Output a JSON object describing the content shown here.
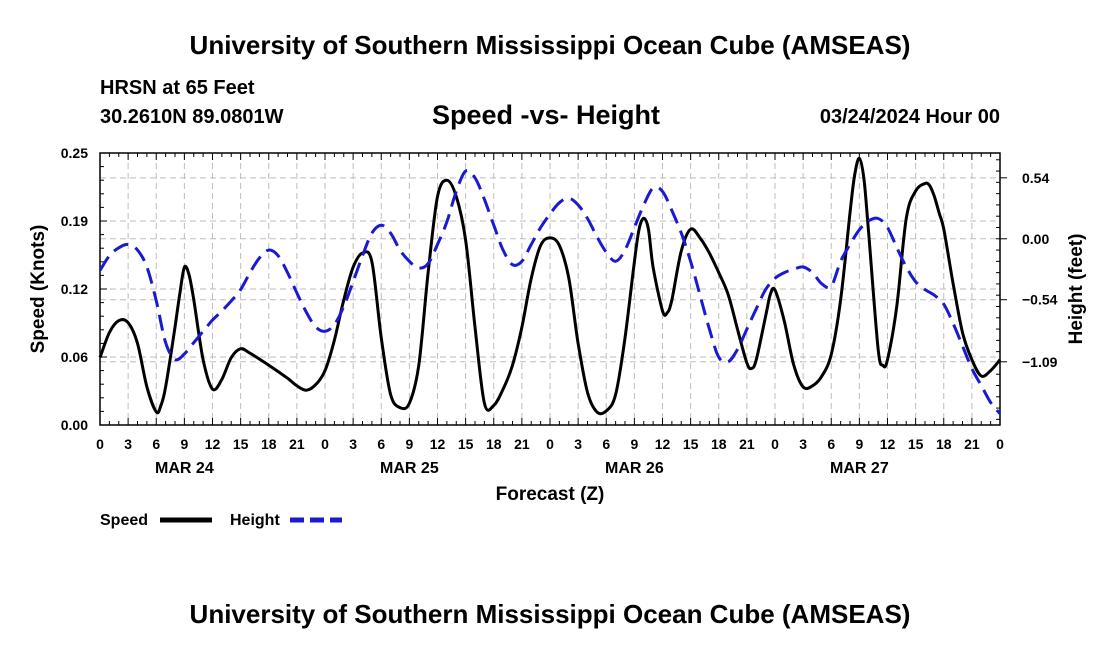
{
  "header": {
    "title": "University of Southern Mississippi Ocean Cube (AMSEAS)",
    "station": "HRSN at 65 Feet",
    "coords": "30.2610N  89.0801W",
    "chart_title": "Speed -vs- Height",
    "date": "03/24/2024 Hour 00"
  },
  "footer": {
    "title": "University of Southern Mississippi Ocean Cube (AMSEAS)"
  },
  "colors": {
    "speed": "#000000",
    "height": "#1a1ad0",
    "grid": "#bdbdbd"
  },
  "chart_data": {
    "type": "line",
    "title": "Speed -vs- Height",
    "xlabel": "Forecast (Z)",
    "ylabel_left": "Speed (Knots)",
    "ylabel_right": "Height (feet)",
    "x_range_hours": [
      0,
      96
    ],
    "x_tick_labels": [
      "0",
      "3",
      "6",
      "9",
      "12",
      "15",
      "18",
      "21",
      "0",
      "3",
      "6",
      "9",
      "12",
      "15",
      "18",
      "21",
      "0",
      "3",
      "6",
      "9",
      "12",
      "15",
      "18",
      "21",
      "0",
      "3",
      "6",
      "9",
      "12",
      "15",
      "18",
      "21",
      "0"
    ],
    "day_labels": [
      {
        "label": "MAR 24",
        "hour": 9
      },
      {
        "label": "MAR 25",
        "hour": 33
      },
      {
        "label": "MAR 26",
        "hour": 57
      },
      {
        "label": "MAR 27",
        "hour": 81
      }
    ],
    "y_left": {
      "range": [
        0,
        0.25
      ],
      "ticks": [
        "0.00",
        "0.06",
        "0.12",
        "0.19",
        "0.25"
      ],
      "tick_values": [
        0,
        0.0625,
        0.125,
        0.1875,
        0.25
      ]
    },
    "y_right": {
      "range": [
        -1.65,
        0.76
      ],
      "ticks": [
        "0.54",
        "0.00",
        "−0.54",
        "−1.09"
      ],
      "tick_values": [
        0.54,
        0,
        -0.54,
        -1.09
      ]
    },
    "legend": [
      {
        "label": "Speed",
        "style": "solid"
      },
      {
        "label": "Height",
        "style": "dashed"
      }
    ],
    "series": [
      {
        "name": "Speed",
        "axis": "left",
        "style": "solid",
        "points": [
          [
            0,
            0.062
          ],
          [
            1,
            0.085
          ],
          [
            2,
            0.096
          ],
          [
            3,
            0.094
          ],
          [
            4,
            0.075
          ],
          [
            5,
            0.035
          ],
          [
            6,
            0.012
          ],
          [
            6.5,
            0.018
          ],
          [
            7,
            0.035
          ],
          [
            8,
            0.09
          ],
          [
            8.5,
            0.12
          ],
          [
            9,
            0.145
          ],
          [
            9.5,
            0.138
          ],
          [
            10,
            0.115
          ],
          [
            11,
            0.06
          ],
          [
            12,
            0.033
          ],
          [
            13,
            0.042
          ],
          [
            14,
            0.062
          ],
          [
            15,
            0.07
          ],
          [
            16,
            0.066
          ],
          [
            18,
            0.055
          ],
          [
            20,
            0.043
          ],
          [
            21,
            0.036
          ],
          [
            22,
            0.032
          ],
          [
            23,
            0.037
          ],
          [
            24,
            0.05
          ],
          [
            25,
            0.078
          ],
          [
            26,
            0.115
          ],
          [
            27,
            0.145
          ],
          [
            28,
            0.158
          ],
          [
            29,
            0.15
          ],
          [
            30,
            0.08
          ],
          [
            31,
            0.028
          ],
          [
            32,
            0.016
          ],
          [
            33,
            0.02
          ],
          [
            34,
            0.055
          ],
          [
            35,
            0.14
          ],
          [
            36,
            0.21
          ],
          [
            37,
            0.225
          ],
          [
            38,
            0.21
          ],
          [
            39,
            0.17
          ],
          [
            40,
            0.09
          ],
          [
            41,
            0.02
          ],
          [
            42,
            0.018
          ],
          [
            43,
            0.033
          ],
          [
            44,
            0.055
          ],
          [
            45,
            0.09
          ],
          [
            46,
            0.135
          ],
          [
            47,
            0.165
          ],
          [
            48,
            0.172
          ],
          [
            49,
            0.165
          ],
          [
            50,
            0.135
          ],
          [
            51,
            0.075
          ],
          [
            52,
            0.03
          ],
          [
            53,
            0.012
          ],
          [
            54,
            0.013
          ],
          [
            55,
            0.028
          ],
          [
            56,
            0.08
          ],
          [
            57,
            0.15
          ],
          [
            57.5,
            0.18
          ],
          [
            58,
            0.19
          ],
          [
            58.5,
            0.18
          ],
          [
            59,
            0.145
          ],
          [
            60,
            0.105
          ],
          [
            60.5,
            0.103
          ],
          [
            61,
            0.115
          ],
          [
            62,
            0.16
          ],
          [
            63,
            0.18
          ],
          [
            64,
            0.172
          ],
          [
            65,
            0.158
          ],
          [
            66,
            0.14
          ],
          [
            67,
            0.12
          ],
          [
            68,
            0.088
          ],
          [
            69,
            0.057
          ],
          [
            69.5,
            0.052
          ],
          [
            70,
            0.06
          ],
          [
            71,
            0.1
          ],
          [
            71.5,
            0.12
          ],
          [
            72,
            0.124
          ],
          [
            73,
            0.095
          ],
          [
            74,
            0.055
          ],
          [
            75,
            0.035
          ],
          [
            76,
            0.036
          ],
          [
            77,
            0.045
          ],
          [
            78,
            0.065
          ],
          [
            79,
            0.115
          ],
          [
            80,
            0.195
          ],
          [
            80.5,
            0.23
          ],
          [
            81,
            0.245
          ],
          [
            81.5,
            0.225
          ],
          [
            82,
            0.175
          ],
          [
            83,
            0.07
          ],
          [
            83.5,
            0.055
          ],
          [
            84,
            0.06
          ],
          [
            85,
            0.11
          ],
          [
            86,
            0.19
          ],
          [
            87,
            0.215
          ],
          [
            88,
            0.222
          ],
          [
            88.5,
            0.22
          ],
          [
            89,
            0.21
          ],
          [
            89.5,
            0.195
          ],
          [
            90,
            0.18
          ],
          [
            91,
            0.13
          ],
          [
            92,
            0.085
          ],
          [
            93,
            0.06
          ],
          [
            94,
            0.045
          ],
          [
            95,
            0.05
          ],
          [
            96,
            0.06
          ]
        ]
      },
      {
        "name": "Height",
        "axis": "right",
        "style": "dashed",
        "points": [
          [
            0,
            -0.28
          ],
          [
            1,
            -0.15
          ],
          [
            2,
            -0.08
          ],
          [
            3,
            -0.05
          ],
          [
            4,
            -0.1
          ],
          [
            5,
            -0.25
          ],
          [
            6,
            -0.55
          ],
          [
            7,
            -0.92
          ],
          [
            8,
            -1.07
          ],
          [
            9,
            -1.02
          ],
          [
            10,
            -0.92
          ],
          [
            11,
            -0.82
          ],
          [
            12,
            -0.72
          ],
          [
            13,
            -0.64
          ],
          [
            14,
            -0.55
          ],
          [
            15,
            -0.45
          ],
          [
            16,
            -0.3
          ],
          [
            17,
            -0.17
          ],
          [
            18,
            -0.1
          ],
          [
            19,
            -0.15
          ],
          [
            20,
            -0.3
          ],
          [
            21,
            -0.48
          ],
          [
            22,
            -0.65
          ],
          [
            23,
            -0.78
          ],
          [
            24,
            -0.82
          ],
          [
            25,
            -0.76
          ],
          [
            26,
            -0.6
          ],
          [
            27,
            -0.38
          ],
          [
            28,
            -0.15
          ],
          [
            29,
            0.05
          ],
          [
            30,
            0.12
          ],
          [
            31,
            0.05
          ],
          [
            32,
            -0.1
          ],
          [
            33,
            -0.2
          ],
          [
            34,
            -0.26
          ],
          [
            35,
            -0.22
          ],
          [
            36,
            -0.05
          ],
          [
            37,
            0.15
          ],
          [
            38,
            0.42
          ],
          [
            39,
            0.6
          ],
          [
            40,
            0.54
          ],
          [
            41,
            0.35
          ],
          [
            42,
            0.12
          ],
          [
            43,
            -0.1
          ],
          [
            44,
            -0.23
          ],
          [
            45,
            -0.2
          ],
          [
            46,
            -0.05
          ],
          [
            47,
            0.1
          ],
          [
            48,
            0.22
          ],
          [
            49,
            0.32
          ],
          [
            50,
            0.36
          ],
          [
            51,
            0.3
          ],
          [
            52,
            0.18
          ],
          [
            53,
            0.02
          ],
          [
            54,
            -0.12
          ],
          [
            55,
            -0.2
          ],
          [
            56,
            -0.1
          ],
          [
            57,
            0.1
          ],
          [
            58,
            0.3
          ],
          [
            59,
            0.45
          ],
          [
            60,
            0.42
          ],
          [
            61,
            0.25
          ],
          [
            62,
            0.05
          ],
          [
            63,
            -0.2
          ],
          [
            64,
            -0.5
          ],
          [
            65,
            -0.8
          ],
          [
            66,
            -1.05
          ],
          [
            67,
            -1.09
          ],
          [
            68,
            -0.98
          ],
          [
            69,
            -0.8
          ],
          [
            70,
            -0.62
          ],
          [
            71,
            -0.45
          ],
          [
            72,
            -0.35
          ],
          [
            73,
            -0.3
          ],
          [
            74,
            -0.27
          ],
          [
            75,
            -0.25
          ],
          [
            76,
            -0.3
          ],
          [
            77,
            -0.4
          ],
          [
            78,
            -0.42
          ],
          [
            79,
            -0.2
          ],
          [
            80,
            -0.05
          ],
          [
            81,
            0.08
          ],
          [
            82,
            0.16
          ],
          [
            83,
            0.18
          ],
          [
            84,
            0.1
          ],
          [
            85,
            -0.08
          ],
          [
            86,
            -0.25
          ],
          [
            87,
            -0.38
          ],
          [
            88,
            -0.45
          ],
          [
            89,
            -0.5
          ],
          [
            90,
            -0.58
          ],
          [
            91,
            -0.75
          ],
          [
            92,
            -0.95
          ],
          [
            93,
            -1.15
          ],
          [
            94,
            -1.3
          ],
          [
            95,
            -1.45
          ],
          [
            96,
            -1.55
          ]
        ]
      }
    ]
  }
}
